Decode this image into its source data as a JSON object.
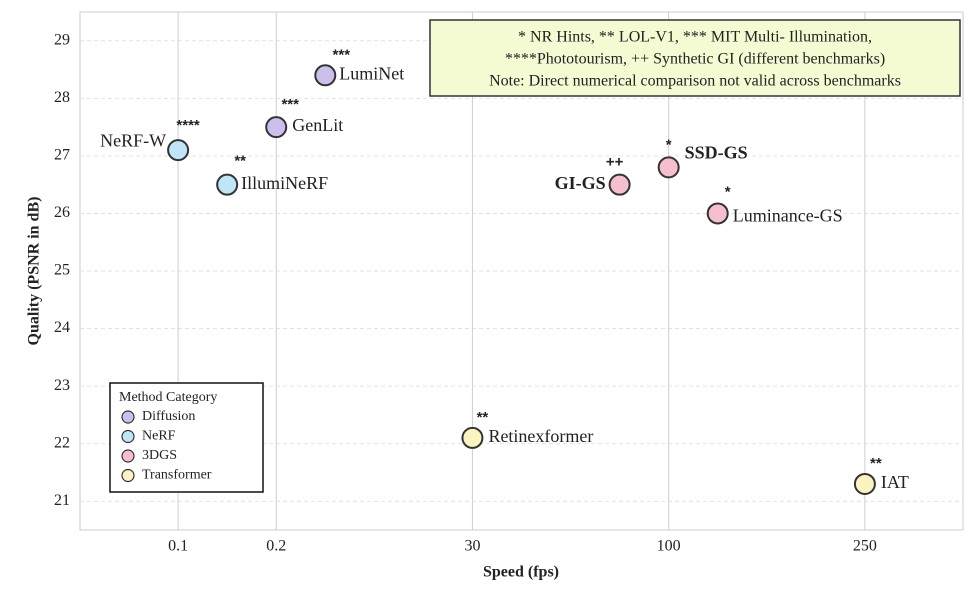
{
  "chart_data": {
    "type": "scatter",
    "xlabel": "Speed (fps)",
    "ylabel": "Quality (PSNR in dB)",
    "xlim": [
      0,
      9
    ],
    "xticks": [
      {
        "value": 1,
        "label": "0.1"
      },
      {
        "value": 2,
        "label": "0.2"
      },
      {
        "value": 4,
        "label": "30"
      },
      {
        "value": 6,
        "label": "100"
      },
      {
        "value": 8,
        "label": "250"
      }
    ],
    "ylim": [
      20.5,
      29.5
    ],
    "yticks": [
      21,
      22,
      23,
      24,
      25,
      26,
      27,
      28,
      29
    ],
    "grid": true,
    "legend": {
      "title": "Method Category",
      "position": "lower left"
    },
    "note": [
      "* NR Hints, ** LOL-V1, *** MIT Multi- Illumination,",
      "****Phototourism, ++ Synthetic GI (different benchmarks)",
      "Note: Direct numerical comparison not valid across benchmarks"
    ],
    "series": [
      {
        "name": "Diffusion",
        "color": "#cdbfeb",
        "x": [
          2,
          2.5
        ],
        "values": [
          27.5,
          28.4
        ],
        "labels": [
          "GenLit",
          "LumiNet"
        ],
        "notes": [
          "***",
          "***"
        ]
      },
      {
        "name": "NeRF",
        "color": "#bfe5f7",
        "x": [
          1,
          1.5
        ],
        "values": [
          27.1,
          26.5
        ],
        "labels": [
          "NeRF-W",
          "IllumiNeRF"
        ],
        "notes": [
          "****",
          "**"
        ]
      },
      {
        "name": "3DGS",
        "color": "#f6bfcd",
        "x": [
          5.5,
          6,
          6.5
        ],
        "values": [
          26.5,
          26.8,
          26.0
        ],
        "labels": [
          "GI-GS",
          "SSD-GS",
          "Luminance-GS"
        ],
        "notes": [
          "++",
          "*",
          "*"
        ]
      },
      {
        "name": "Transformer",
        "color": "#fbf3c0",
        "x": [
          4,
          8
        ],
        "values": [
          22.1,
          21.3
        ],
        "labels": [
          "Retinexformer",
          "IAT"
        ],
        "notes": [
          "**",
          "**"
        ]
      }
    ]
  }
}
